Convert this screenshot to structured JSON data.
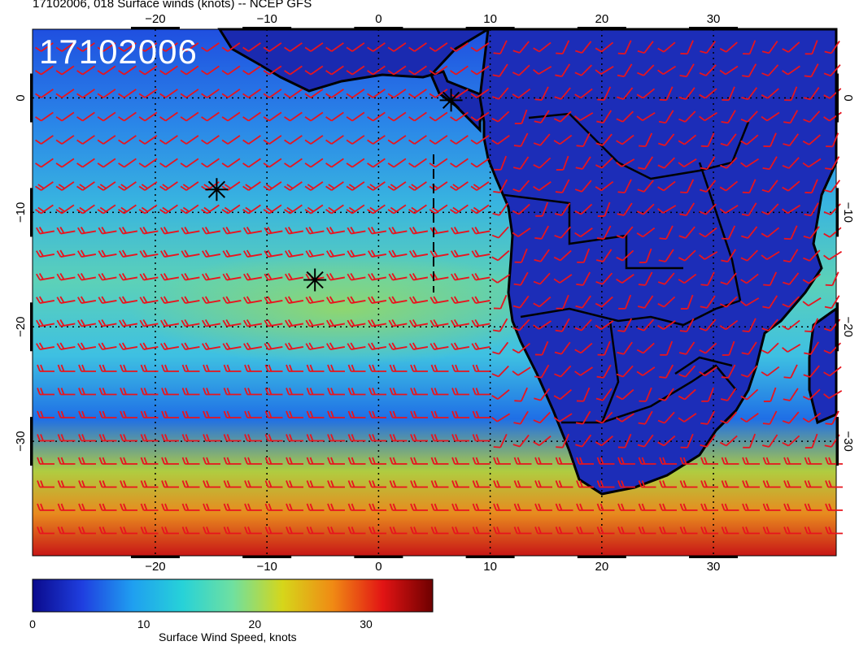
{
  "title": "17102006, 018 Surface winds (knots) -- NCEP GFS",
  "date_stamp": "17102006",
  "map": {
    "lon_range": [
      -31,
      41
    ],
    "lat_range": [
      -40,
      6
    ],
    "lon_ticks": [
      "-20",
      "-10",
      "0",
      "10",
      "20",
      "30"
    ],
    "lat_ticks": [
      "0",
      "-10",
      "-20",
      "-30"
    ],
    "wind_barb_color": "#e8141e",
    "land_color": "#1a2ab0",
    "markers": [
      {
        "name": "star",
        "lon": 6.5,
        "lat": -0.2
      },
      {
        "name": "star",
        "lon": -14.5,
        "lat": -8.0
      },
      {
        "name": "star",
        "lon": -5.7,
        "lat": -15.9
      }
    ]
  },
  "colorbar": {
    "label": "Surface Wind Speed, knots",
    "ticks": [
      "0",
      "10",
      "20",
      "30"
    ],
    "range": [
      0,
      36
    ],
    "colors": [
      "#0a0a8c",
      "#1f3fe0",
      "#1f9ff0",
      "#27d2d8",
      "#6fe0a0",
      "#d6d61a",
      "#f08a14",
      "#e21414",
      "#6e0000"
    ]
  }
}
